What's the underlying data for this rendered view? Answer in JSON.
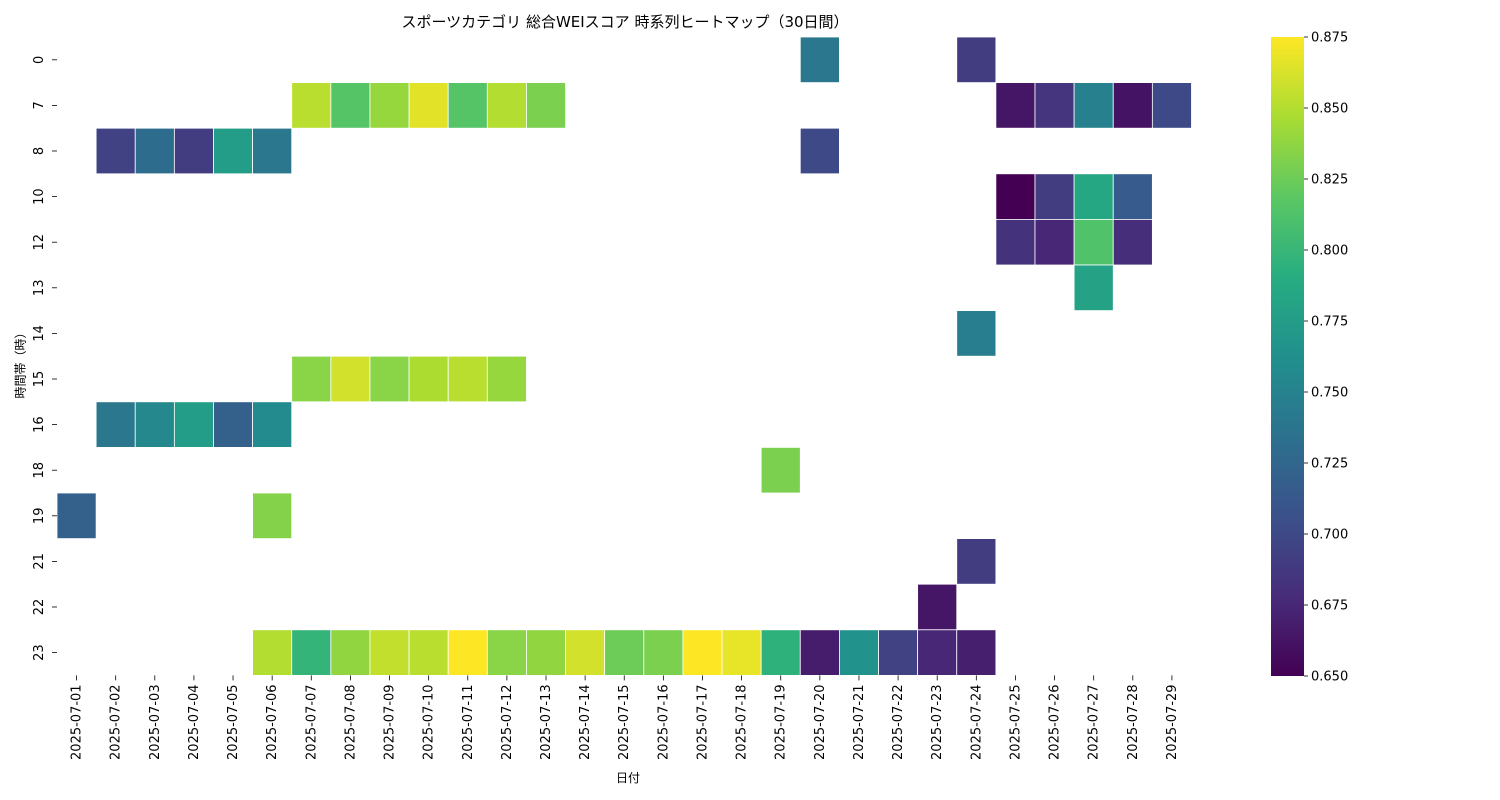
{
  "chart_data": {
    "type": "heatmap",
    "title": "スポーツカテゴリ 総合WEIスコア 時系列ヒートマップ（30日間）",
    "xlabel": "日付",
    "ylabel": "時間帯（時）",
    "x": [
      "2025-07-01",
      "2025-07-02",
      "2025-07-03",
      "2025-07-04",
      "2025-07-05",
      "2025-07-06",
      "2025-07-07",
      "2025-07-08",
      "2025-07-09",
      "2025-07-10",
      "2025-07-11",
      "2025-07-12",
      "2025-07-13",
      "2025-07-14",
      "2025-07-15",
      "2025-07-16",
      "2025-07-17",
      "2025-07-18",
      "2025-07-19",
      "2025-07-20",
      "2025-07-21",
      "2025-07-22",
      "2025-07-23",
      "2025-07-24",
      "2025-07-25",
      "2025-07-26",
      "2025-07-27",
      "2025-07-28",
      "2025-07-29"
    ],
    "y": [
      "0",
      "7",
      "8",
      "10",
      "12",
      "13",
      "14",
      "15",
      "16",
      "18",
      "19",
      "21",
      "22",
      "23"
    ],
    "values": [
      [
        null,
        null,
        null,
        null,
        null,
        null,
        null,
        null,
        null,
        null,
        null,
        null,
        null,
        null,
        null,
        null,
        null,
        null,
        null,
        0.74,
        null,
        null,
        null,
        0.69,
        null,
        null,
        null,
        null,
        null
      ],
      [
        null,
        null,
        null,
        null,
        null,
        null,
        0.852,
        0.815,
        0.84,
        0.866,
        0.815,
        0.85,
        0.83,
        null,
        null,
        null,
        null,
        null,
        null,
        null,
        null,
        null,
        null,
        null,
        0.663,
        0.685,
        0.748,
        0.662,
        0.7
      ],
      [
        null,
        0.695,
        0.73,
        0.69,
        0.775,
        0.74,
        null,
        null,
        null,
        null,
        null,
        null,
        null,
        null,
        null,
        null,
        null,
        null,
        null,
        0.7,
        null,
        null,
        null,
        null,
        null,
        null,
        null,
        null,
        null
      ],
      [
        null,
        null,
        null,
        null,
        null,
        null,
        null,
        null,
        null,
        null,
        null,
        null,
        null,
        null,
        null,
        null,
        null,
        null,
        null,
        null,
        null,
        null,
        null,
        null,
        0.65,
        0.69,
        0.785,
        0.715,
        null
      ],
      [
        null,
        null,
        null,
        null,
        null,
        null,
        null,
        null,
        null,
        null,
        null,
        null,
        null,
        null,
        null,
        null,
        null,
        null,
        null,
        null,
        null,
        null,
        null,
        null,
        0.683,
        0.675,
        0.812,
        0.68,
        null
      ],
      [
        null,
        null,
        null,
        null,
        null,
        null,
        null,
        null,
        null,
        null,
        null,
        null,
        null,
        null,
        null,
        null,
        null,
        null,
        null,
        null,
        null,
        null,
        null,
        null,
        null,
        null,
        0.78,
        null,
        null
      ],
      [
        null,
        null,
        null,
        null,
        null,
        null,
        null,
        null,
        null,
        null,
        null,
        null,
        null,
        null,
        null,
        null,
        null,
        null,
        null,
        null,
        null,
        null,
        null,
        0.745,
        null,
        null,
        null,
        null,
        null
      ],
      [
        null,
        null,
        null,
        null,
        null,
        null,
        0.835,
        0.86,
        0.835,
        0.848,
        0.852,
        0.84,
        null,
        null,
        null,
        null,
        null,
        null,
        null,
        null,
        null,
        null,
        null,
        null,
        null,
        null,
        null,
        null,
        null
      ],
      [
        null,
        0.74,
        0.755,
        0.775,
        0.72,
        0.757,
        null,
        null,
        null,
        null,
        null,
        null,
        null,
        null,
        null,
        null,
        null,
        null,
        null,
        null,
        null,
        null,
        null,
        null,
        null,
        null,
        null,
        null,
        null
      ],
      [
        null,
        null,
        null,
        null,
        null,
        null,
        null,
        null,
        null,
        null,
        null,
        null,
        null,
        null,
        null,
        null,
        null,
        null,
        0.83,
        null,
        null,
        null,
        null,
        null,
        null,
        null,
        null,
        null,
        null
      ],
      [
        0.72,
        null,
        null,
        null,
        null,
        0.833,
        null,
        null,
        null,
        null,
        null,
        null,
        null,
        null,
        null,
        null,
        null,
        null,
        null,
        null,
        null,
        null,
        null,
        null,
        null,
        null,
        null,
        null,
        null
      ],
      [
        null,
        null,
        null,
        null,
        null,
        null,
        null,
        null,
        null,
        null,
        null,
        null,
        null,
        null,
        null,
        null,
        null,
        null,
        null,
        null,
        null,
        null,
        null,
        0.69,
        null,
        null,
        null,
        null,
        null
      ],
      [
        null,
        null,
        null,
        null,
        null,
        null,
        null,
        null,
        null,
        null,
        null,
        null,
        null,
        null,
        null,
        null,
        null,
        null,
        null,
        null,
        null,
        null,
        0.663,
        null,
        null,
        null,
        null,
        null,
        null
      ],
      [
        null,
        null,
        null,
        null,
        null,
        0.85,
        0.798,
        0.838,
        0.855,
        0.852,
        0.875,
        0.835,
        0.838,
        0.86,
        0.825,
        0.83,
        0.875,
        0.868,
        0.795,
        0.668,
        0.765,
        0.695,
        0.675,
        0.67,
        null,
        null,
        null,
        null,
        null
      ]
    ],
    "colorbar": {
      "colormap": "viridis",
      "range": [
        0.65,
        0.875
      ],
      "ticks": [
        "0.650",
        "0.675",
        "0.700",
        "0.725",
        "0.750",
        "0.775",
        "0.800",
        "0.825",
        "0.850",
        "0.875"
      ]
    }
  }
}
